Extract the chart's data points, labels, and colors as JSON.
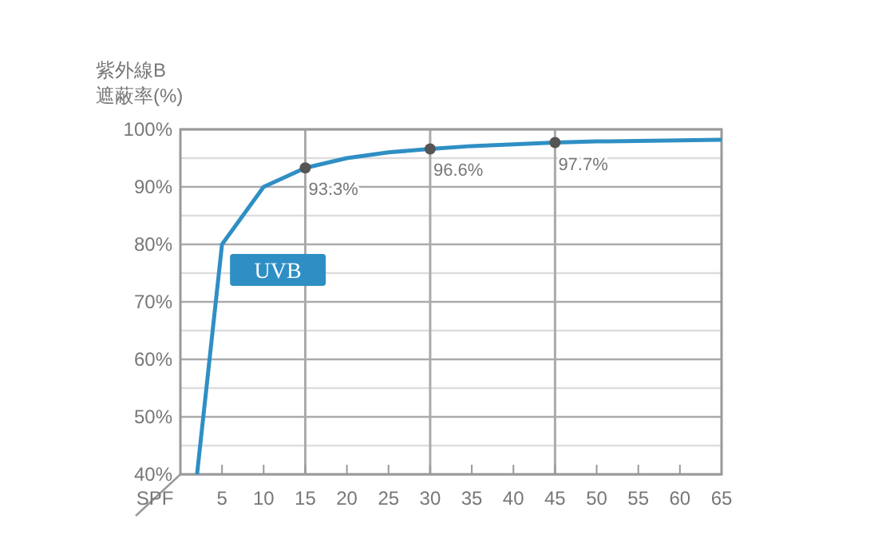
{
  "chart_data": {
    "type": "line",
    "ylabel": "紫外線B\n遮蔽率(%)",
    "xlabel": "SPF",
    "xlim": [
      0,
      65
    ],
    "xticks": [
      5,
      10,
      15,
      20,
      25,
      30,
      35,
      40,
      45,
      50,
      55,
      60,
      65
    ],
    "ylim": [
      40,
      100
    ],
    "yticks": [
      {
        "value": 40,
        "label": "40%"
      },
      {
        "value": 45,
        "label": null
      },
      {
        "value": 50,
        "label": "50%"
      },
      {
        "value": 55,
        "label": null
      },
      {
        "value": 60,
        "label": "60%"
      },
      {
        "value": 65,
        "label": null
      },
      {
        "value": 70,
        "label": "70%"
      },
      {
        "value": 75,
        "label": null
      },
      {
        "value": 80,
        "label": "80%"
      },
      {
        "value": 85,
        "label": null
      },
      {
        "value": 90,
        "label": "90%"
      },
      {
        "value": 95,
        "label": null
      },
      {
        "value": 100,
        "label": "100%"
      }
    ],
    "grid": "y",
    "ref_lines": [
      {
        "axis": "x",
        "value": 15,
        "color": "#aaaaaa"
      },
      {
        "axis": "x",
        "value": 30,
        "color": "#aaaaaa"
      },
      {
        "axis": "x",
        "value": 45,
        "color": "#aaaaaa"
      }
    ],
    "series": [
      {
        "name": "UVB",
        "type": "line",
        "color": "#2f8fc4",
        "marker": "none",
        "x": [
          2,
          5,
          10,
          15,
          20,
          25,
          30,
          35,
          40,
          45,
          50,
          55,
          60,
          65
        ],
        "values": [
          40,
          80,
          90,
          93.3,
          95,
          96,
          96.6,
          97.1,
          97.4,
          97.7,
          97.9,
          98,
          98.1,
          98.2
        ]
      },
      {
        "type": "scatter",
        "color": "#555555",
        "marker": "circle",
        "x": [
          15,
          30,
          45
        ],
        "values": [
          93.3,
          96.6,
          97.7
        ],
        "value_labels": [
          "93.3%",
          "96.6%",
          "97.7%"
        ]
      }
    ]
  }
}
